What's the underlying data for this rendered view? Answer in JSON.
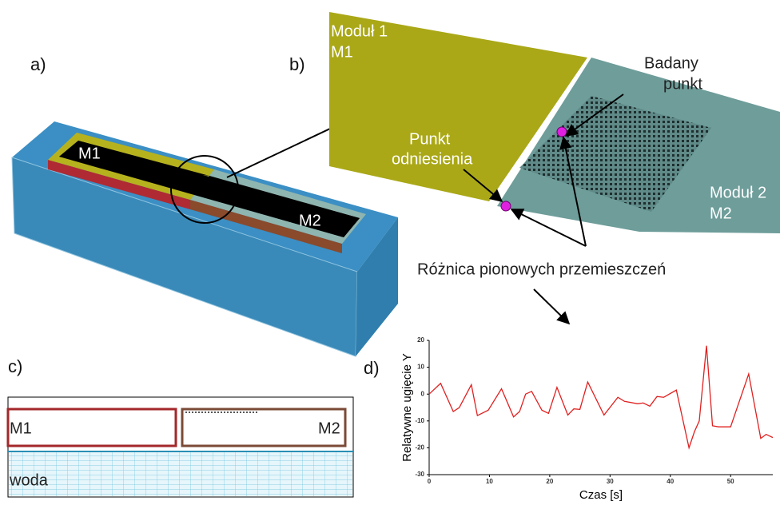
{
  "panels": {
    "a": {
      "label": "a)",
      "module1": "M1",
      "module2": "M2"
    },
    "b": {
      "label": "b)",
      "module1": [
        "Moduł 1",
        "M1"
      ],
      "module2": [
        "Moduł 2",
        "M2"
      ],
      "test_point": [
        "Badany",
        "punkt"
      ],
      "reference_point": [
        "Punkt",
        "odniesienia"
      ],
      "difference": "Różnica pionowych przemieszczeń"
    },
    "c": {
      "label": "c)",
      "module1": "M1",
      "module2": "M2",
      "water": "woda"
    },
    "d": {
      "label": "d)"
    }
  },
  "chart_data": {
    "type": "line",
    "x_label": "Czas [s]",
    "y_label": "Relatywne ugięcie Y",
    "x": [
      0,
      1.9,
      4,
      5,
      7,
      8,
      9.8,
      12,
      14,
      15,
      16,
      17,
      18.7,
      19.8,
      21.2,
      23,
      24,
      25,
      26.3,
      29,
      31.3,
      32.4,
      34.6,
      35.5,
      36.6,
      37.8,
      38.9,
      41,
      43.1,
      44,
      44.8,
      46,
      47,
      48,
      50,
      53,
      55,
      55.9,
      57
    ],
    "values": [
      0,
      4,
      -6.5,
      -5,
      3.5,
      -8,
      -6,
      2,
      -8.5,
      -6.5,
      0,
      1,
      -6,
      -7.2,
      2.5,
      -7.8,
      -5.5,
      -5.7,
      4.5,
      -7.8,
      -1.2,
      -2.7,
      -3.6,
      -3.3,
      -4.5,
      -0.9,
      -1.2,
      1.5,
      -20,
      -14,
      -10,
      18,
      -11.8,
      -12.2,
      -12.2,
      7.5,
      -16.5,
      -15,
      -16.2
    ],
    "color": "#e02020",
    "xlim": [
      0,
      57
    ],
    "xticks": [
      0,
      10,
      20,
      30,
      40,
      50
    ],
    "ylim": [
      -30,
      20
    ],
    "yticks": [
      -30,
      -20,
      -10,
      0,
      10,
      20
    ]
  }
}
